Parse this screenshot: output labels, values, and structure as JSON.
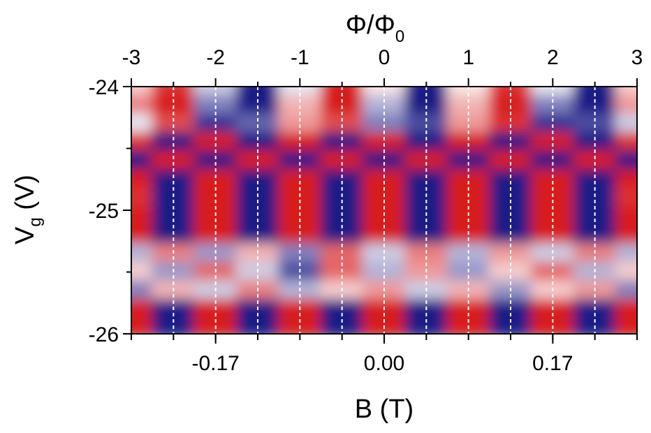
{
  "chart_data": {
    "type": "heatmap",
    "colormap": {
      "negative": "#00007a",
      "neutral": "#ffffff",
      "positive": "#d40000"
    },
    "x": [
      -3,
      -2.5,
      -2,
      -1.5,
      -1,
      -0.5,
      0,
      0.5,
      1,
      1.5,
      2,
      2.5,
      3
    ],
    "y": [
      -24.0,
      -24.15,
      -24.3,
      -24.45,
      -24.6,
      -24.75,
      -24.9,
      -25.05,
      -25.2,
      -25.35,
      -25.5,
      -25.65,
      -25.8,
      -25.95
    ],
    "z": [
      [
        0.2,
        0.8,
        -0.2,
        -0.9,
        -0.1,
        0.9,
        0.1,
        -0.9,
        0.1,
        0.8,
        -0.1,
        -0.9,
        0.2
      ],
      [
        0.5,
        0.9,
        -0.5,
        -0.9,
        0.3,
        0.9,
        -0.3,
        -0.9,
        0.3,
        0.9,
        -0.5,
        -0.9,
        0.4
      ],
      [
        -0.1,
        0.7,
        -0.8,
        -0.6,
        0.4,
        0.7,
        -0.5,
        -0.7,
        0.4,
        0.8,
        -0.8,
        -0.7,
        -0.2
      ],
      [
        0.8,
        -0.9,
        0.9,
        -0.9,
        0.9,
        -0.9,
        0.9,
        -0.9,
        0.9,
        -0.9,
        0.9,
        -0.9,
        0.8
      ],
      [
        -0.9,
        0.9,
        -0.9,
        0.9,
        -0.9,
        0.9,
        -0.9,
        0.9,
        -0.9,
        0.9,
        -0.9,
        0.9,
        -0.9
      ],
      [
        0.9,
        -0.9,
        0.9,
        -0.9,
        0.9,
        -0.9,
        0.9,
        -0.9,
        0.9,
        -0.9,
        0.9,
        -0.9,
        0.9
      ],
      [
        0.8,
        -0.9,
        0.9,
        -0.9,
        0.9,
        -0.9,
        0.9,
        -0.9,
        0.9,
        -0.9,
        0.9,
        -0.9,
        0.8
      ],
      [
        0.9,
        -0.9,
        0.9,
        -0.9,
        0.9,
        -0.9,
        0.9,
        -0.9,
        0.9,
        -0.9,
        0.9,
        -0.9,
        0.9
      ],
      [
        0.9,
        -0.9,
        0.9,
        -0.9,
        0.9,
        -0.9,
        0.9,
        -0.9,
        0.9,
        -0.9,
        0.9,
        -0.9,
        0.9
      ],
      [
        -0.3,
        0.5,
        -0.4,
        0.3,
        -0.5,
        0.6,
        -0.2,
        0.5,
        -0.3,
        0.4,
        -0.2,
        0.5,
        -0.3
      ],
      [
        0.2,
        -0.4,
        0.6,
        -0.2,
        -0.7,
        0.6,
        -0.3,
        0.4,
        -0.4,
        0.2,
        0.6,
        -0.3,
        0.2
      ],
      [
        -0.5,
        0.3,
        -0.2,
        0.5,
        -0.3,
        0.2,
        0.4,
        -0.2,
        0.3,
        -0.4,
        0.2,
        0.4,
        -0.5
      ],
      [
        0.9,
        -0.9,
        0.9,
        -0.9,
        0.9,
        -0.9,
        0.9,
        -0.9,
        0.9,
        -0.9,
        0.9,
        -0.9,
        0.9
      ],
      [
        0.9,
        -0.9,
        0.9,
        -0.9,
        0.9,
        -0.9,
        0.9,
        -0.9,
        0.9,
        -0.9,
        0.9,
        -0.9,
        0.9
      ]
    ],
    "xlim": [
      -3,
      3
    ],
    "ylim": [
      -26,
      -24
    ],
    "x_bottom": {
      "label": "B (T)",
      "ticks": [
        -0.17,
        0.0,
        0.17
      ],
      "tick_labels": [
        "-0.17",
        "0.00",
        "0.17"
      ],
      "ticks_at_flux": [
        -2,
        0,
        2
      ]
    },
    "x_top": {
      "label_main": "Φ/Φ",
      "label_sub": "0",
      "ticks": [
        -3,
        -2,
        -1,
        0,
        1,
        2,
        3
      ],
      "tick_labels": [
        "-3",
        "-2",
        "-1",
        "0",
        "1",
        "2",
        "3"
      ]
    },
    "y_left": {
      "label_main": "V",
      "label_sub": "g",
      "label_unit": " (V)",
      "ticks": [
        -24,
        -25,
        -26
      ],
      "tick_labels": [
        "-24",
        "-25",
        "-26"
      ]
    },
    "dashed_lines_at_flux": [
      -2.5,
      -2,
      -1.5,
      -1,
      -0.5,
      0,
      0.5,
      1,
      1.5,
      2,
      2.5
    ],
    "legend": "none"
  }
}
